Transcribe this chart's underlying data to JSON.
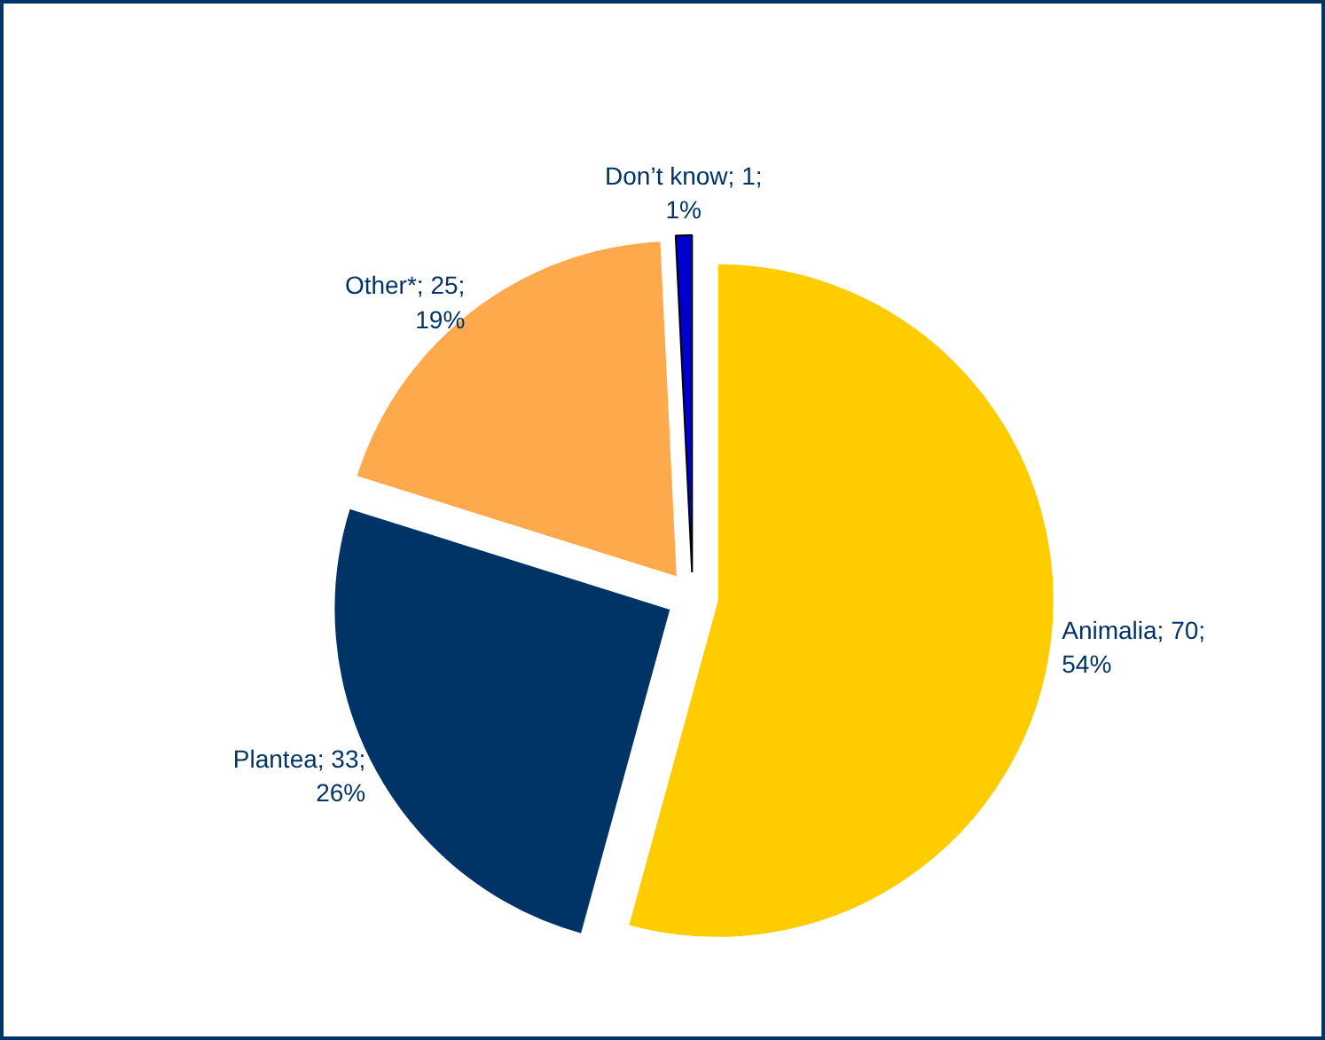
{
  "chart_data": {
    "type": "pie",
    "categories": [
      "Animalia",
      "Plantea",
      "Other*",
      "Don’t know"
    ],
    "values": [
      70,
      33,
      25,
      1
    ],
    "colors": [
      "#ffcc00",
      "#003366",
      "#ffa94d",
      "#0000cc"
    ],
    "data_labels": true,
    "value_labels": [
      "70; 54%",
      "33; 26%",
      "25; 19%",
      "1; 1%"
    ]
  }
}
